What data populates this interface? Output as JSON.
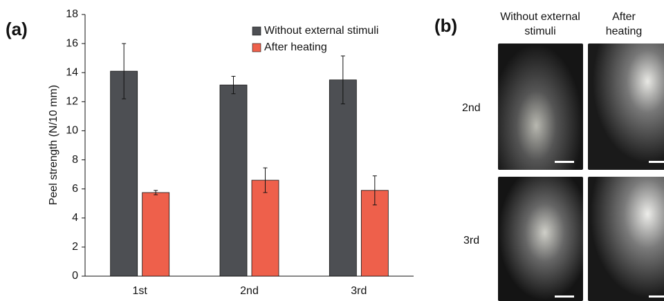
{
  "chart_data": {
    "type": "bar",
    "panel_label": "(a)",
    "y_label": "Peel strength (N/10 mm)",
    "categories": [
      "1st",
      "2nd",
      "3rd"
    ],
    "series": [
      {
        "name": "Without external stimuli",
        "color": "#4d4f53",
        "values": [
          14.1,
          13.15,
          13.5
        ],
        "errors": [
          1.9,
          0.6,
          1.65
        ]
      },
      {
        "name": "After heating",
        "color": "#ee604b",
        "values": [
          5.75,
          6.6,
          5.9
        ],
        "errors": [
          0.15,
          0.85,
          1.0
        ]
      }
    ],
    "ylim": [
      0,
      18
    ],
    "yticks": [
      0,
      2,
      4,
      6,
      8,
      10,
      12,
      14,
      16,
      18
    ],
    "grid": false,
    "legend": "upper right"
  },
  "panel_b": {
    "label": "(b)",
    "columns": [
      "Without external stimuli",
      "After heating"
    ],
    "rows": [
      "2nd",
      "3rd"
    ]
  }
}
